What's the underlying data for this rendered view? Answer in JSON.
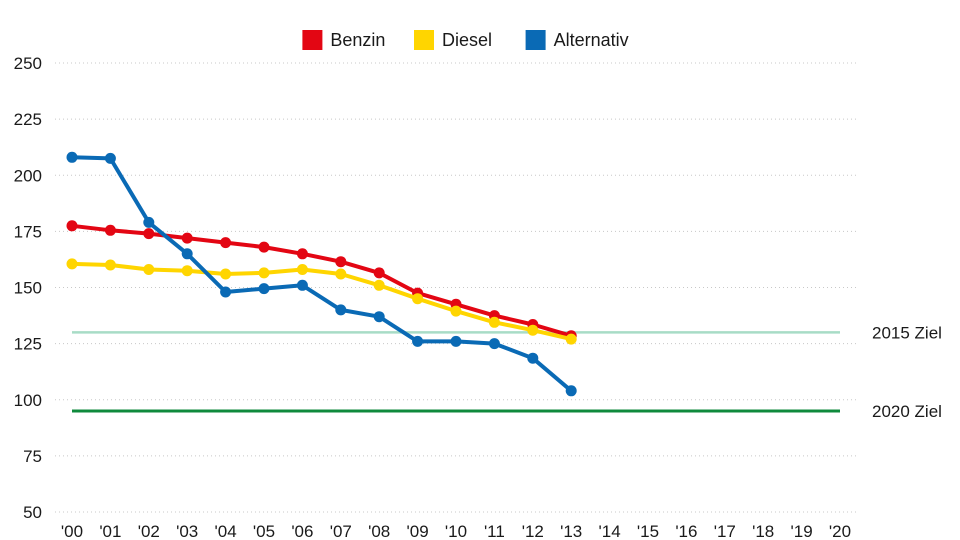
{
  "chart_data": {
    "type": "line",
    "x": [
      "'00",
      "'01",
      "'02",
      "'03",
      "'04",
      "'05",
      "'06",
      "'07",
      "'08",
      "'09",
      "'10",
      "'11",
      "'12",
      "'13",
      "'14",
      "'15",
      "'16",
      "'17",
      "'18",
      "'19",
      "'20"
    ],
    "yticks": [
      "250",
      "225",
      "200",
      "175",
      "150",
      "125",
      "100",
      "75",
      "50"
    ],
    "ylim": [
      50,
      250
    ],
    "grid": true,
    "legend": "top-center",
    "series": [
      {
        "name": "Benzin",
        "color": "#e30613",
        "values": [
          177.5,
          175.5,
          174,
          172,
          170,
          168,
          165,
          161.5,
          156.5,
          147.5,
          142.5,
          137.5,
          133.5,
          128.5,
          null,
          null,
          null,
          null,
          null,
          null,
          null
        ]
      },
      {
        "name": "Diesel",
        "color": "#ffd500",
        "values": [
          160.5,
          160,
          158,
          157.5,
          156,
          156.5,
          158,
          156,
          151,
          145,
          139.5,
          134.5,
          131,
          127,
          null,
          null,
          null,
          null,
          null,
          null,
          null
        ]
      },
      {
        "name": "Alternativ",
        "color": "#0a6ab5",
        "values": [
          208,
          207.5,
          179,
          165,
          148,
          149.5,
          151,
          140,
          137,
          126,
          126,
          125,
          118.5,
          104,
          null,
          null,
          null,
          null,
          null,
          null,
          null
        ]
      }
    ],
    "reference_lines": [
      {
        "label": "2015 Ziel",
        "value": 130,
        "color": "#a8dcc6"
      },
      {
        "label": "2020 Ziel",
        "value": 95,
        "color": "#0f8a3c"
      }
    ]
  }
}
